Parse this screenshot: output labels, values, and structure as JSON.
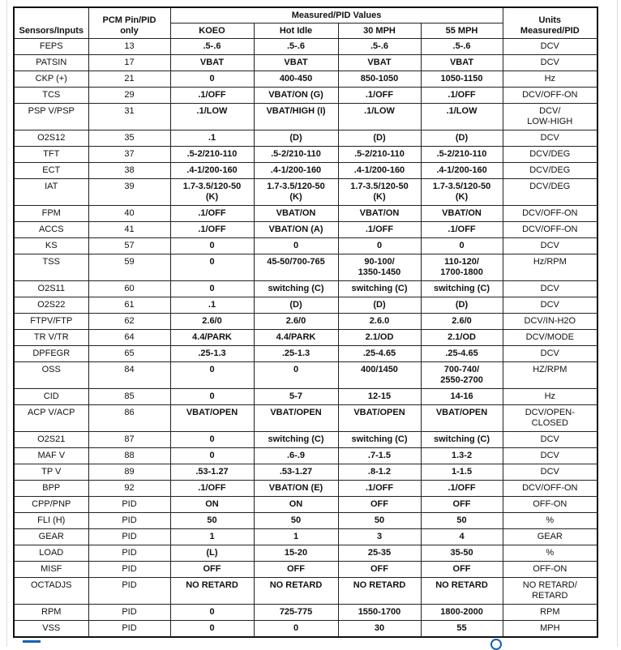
{
  "header": {
    "sensors": "Sensors/Inputs",
    "pin": "PCM Pin/PID\nonly",
    "measured": "Measured/PID Values",
    "units": "Units\nMeasured/PID",
    "conditions": [
      "KOEO",
      "Hot Idle",
      "30 MPH",
      "55 MPH"
    ]
  },
  "rows": [
    [
      "FEPS",
      "13",
      ".5-.6",
      ".5-.6",
      ".5-.6",
      ".5-.6",
      "DCV"
    ],
    [
      "PATSIN",
      "17",
      "VBAT",
      "VBAT",
      "VBAT",
      "VBAT",
      "DCV"
    ],
    [
      "CKP (+)",
      "21",
      "0",
      "400-450",
      "850-1050",
      "1050-1150",
      "Hz"
    ],
    [
      "TCS",
      "29",
      ".1/OFF",
      "VBAT/ON (G)",
      ".1/OFF",
      ".1/OFF",
      "DCV/OFF-ON"
    ],
    [
      "PSP V/PSP",
      "31",
      ".1/LOW",
      "VBAT/HIGH (I)",
      ".1/LOW",
      ".1/LOW",
      "DCV/\nLOW-HIGH"
    ],
    [
      "O2S12",
      "35",
      ".1",
      "(D)",
      "(D)",
      "(D)",
      "DCV"
    ],
    [
      "TFT",
      "37",
      ".5-2/210-110",
      ".5-2/210-110",
      ".5-2/210-110",
      ".5-2/210-110",
      "DCV/DEG"
    ],
    [
      "ECT",
      "38",
      ".4-1/200-160",
      ".4-1/200-160",
      ".4-1/200-160",
      ".4-1/200-160",
      "DCV/DEG"
    ],
    [
      "IAT",
      "39",
      "1.7-3.5/120-50\n(K)",
      "1.7-3.5/120-50\n(K)",
      "1.7-3.5/120-50\n(K)",
      "1.7-3.5/120-50\n(K)",
      "DCV/DEG"
    ],
    [
      "FPM",
      "40",
      ".1/OFF",
      "VBAT/ON",
      "VBAT/ON",
      "VBAT/ON",
      "DCV/OFF-ON"
    ],
    [
      "ACCS",
      "41",
      ".1/OFF",
      "VBAT/ON (A)",
      ".1/OFF",
      ".1/OFF",
      "DCV/OFF-ON"
    ],
    [
      "KS",
      "57",
      "0",
      "0",
      "0",
      "0",
      "DCV"
    ],
    [
      "TSS",
      "59",
      "0",
      "45-50/700-765",
      "90-100/\n1350-1450",
      "110-120/\n1700-1800",
      "Hz/RPM"
    ],
    [
      "O2S11",
      "60",
      "0",
      "switching (C)",
      "switching (C)",
      "switching (C)",
      "DCV"
    ],
    [
      "O2S22",
      "61",
      ".1",
      "(D)",
      "(D)",
      "(D)",
      "DCV"
    ],
    [
      "FTPV/FTP",
      "62",
      "2.6/0",
      "2.6/0",
      "2.6.0",
      "2.6/0",
      "DCV/IN-H2O"
    ],
    [
      "TR V/TR",
      "64",
      "4.4/PARK",
      "4.4/PARK",
      "2.1/OD",
      "2.1/OD",
      "DCV/MODE"
    ],
    [
      "DPFEGR",
      "65",
      ".25-1.3",
      ".25-1.3",
      ".25-4.65",
      ".25-4.65",
      "DCV"
    ],
    [
      "OSS",
      "84",
      "0",
      "0",
      "400/1450",
      "700-740/\n2550-2700",
      "HZ/RPM"
    ],
    [
      "CID",
      "85",
      "0",
      "5-7",
      "12-15",
      "14-16",
      "Hz"
    ],
    [
      "ACP V/ACP",
      "86",
      "VBAT/OPEN",
      "VBAT/OPEN",
      "VBAT/OPEN",
      "VBAT/OPEN",
      "DCV/OPEN-\nCLOSED"
    ],
    [
      "O2S21",
      "87",
      "0",
      "switching (C)",
      "switching (C)",
      "switching (C)",
      "DCV"
    ],
    [
      "MAF V",
      "88",
      "0",
      ".6-.9",
      ".7-1.5",
      "1.3-2",
      "DCV"
    ],
    [
      "TP V",
      "89",
      ".53-1.27",
      ".53-1.27",
      ".8-1.2",
      "1-1.5",
      "DCV"
    ],
    [
      "BPP",
      "92",
      ".1/OFF",
      "VBAT/ON (E)",
      ".1/OFF",
      ".1/OFF",
      "DCV/OFF-ON"
    ],
    [
      "CPP/PNP",
      "PID",
      "ON",
      "ON",
      "OFF",
      "OFF",
      "OFF-ON"
    ],
    [
      "FLI (H)",
      "PID",
      "50",
      "50",
      "50",
      "50",
      "%"
    ],
    [
      "GEAR",
      "PID",
      "1",
      "1",
      "3",
      "4",
      "GEAR"
    ],
    [
      "LOAD",
      "PID",
      "(L)",
      "15-20",
      "25-35",
      "35-50",
      "%"
    ],
    [
      "MISF",
      "PID",
      "OFF",
      "OFF",
      "OFF",
      "OFF",
      "OFF-ON"
    ],
    [
      "OCTADJS",
      "PID",
      "NO RETARD",
      "NO RETARD",
      "NO RETARD",
      "NO RETARD",
      "NO RETARD/\nRETARD"
    ],
    [
      "RPM",
      "PID",
      "0",
      "725-775",
      "1550-1700",
      "1800-2000",
      "RPM"
    ],
    [
      "VSS",
      "PID",
      "0",
      "0",
      "30",
      "55",
      "MPH"
    ]
  ]
}
